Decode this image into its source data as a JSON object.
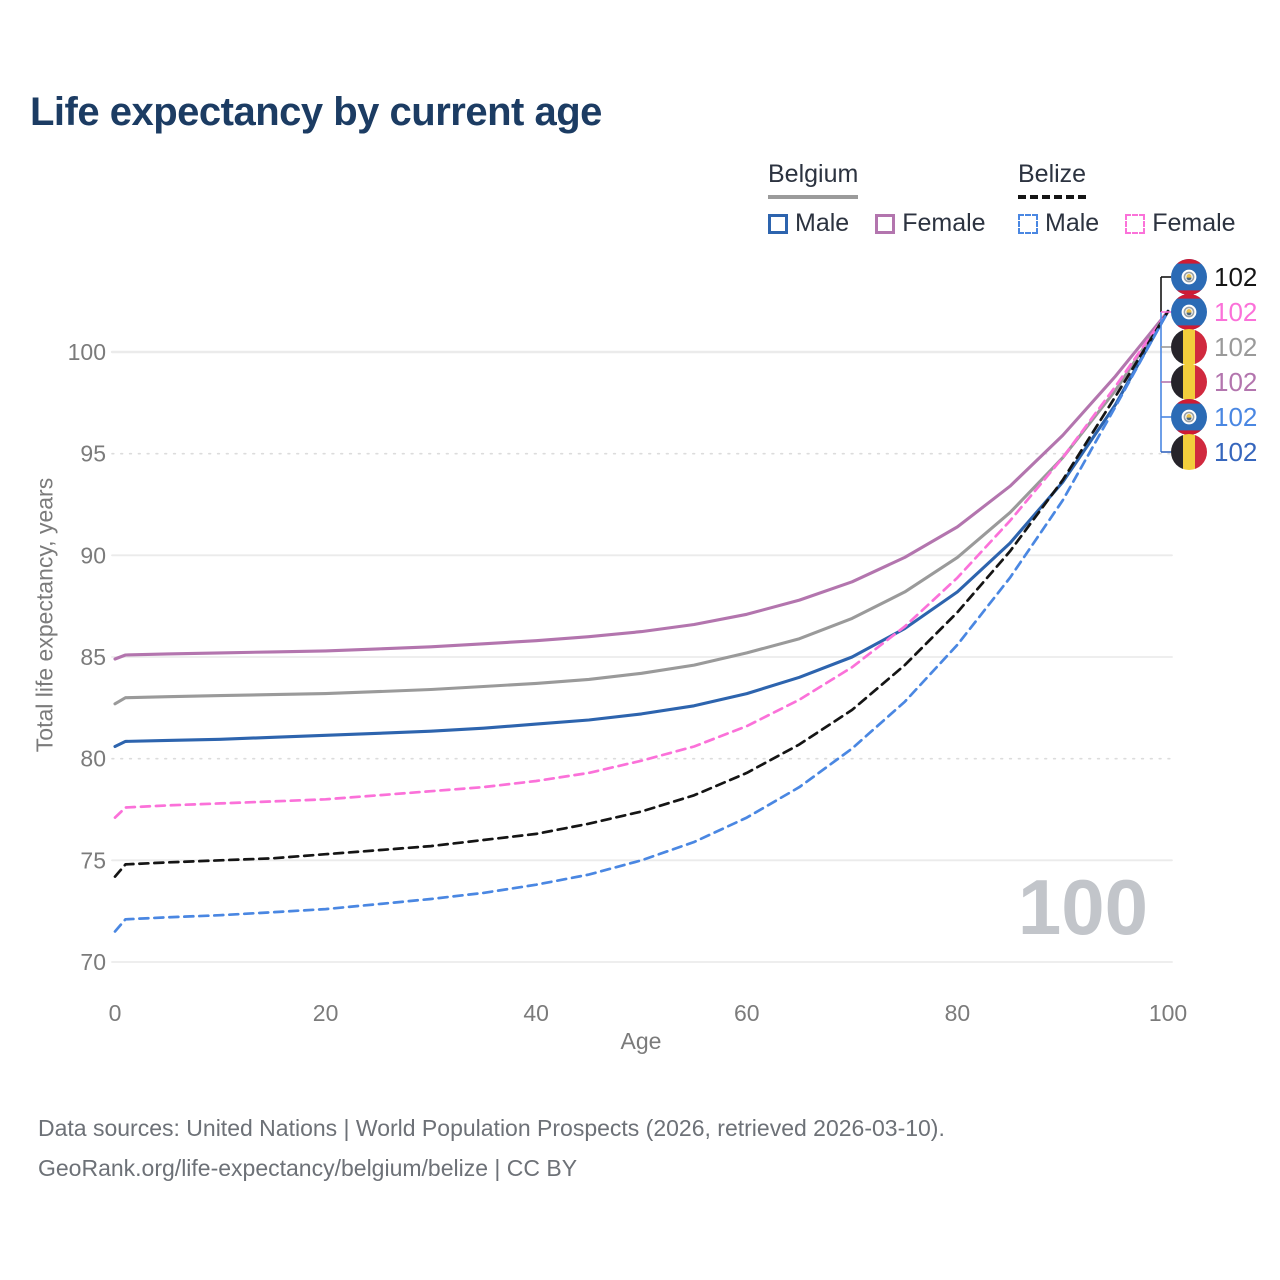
{
  "title": "Life expectancy by current age",
  "legend": {
    "groups": [
      {
        "label": "Belgium",
        "line_style": "solid",
        "underline_color": "#9b9b9b",
        "items": [
          {
            "label": "Male",
            "color": "#2d64ae"
          },
          {
            "label": "Female",
            "color": "#b375ae"
          }
        ]
      },
      {
        "label": "Belize",
        "line_style": "dashed",
        "underline_color": "#151515",
        "items": [
          {
            "label": "Male",
            "color": "#4a87e2"
          },
          {
            "label": "Female",
            "color": "#fb71d9"
          }
        ]
      }
    ]
  },
  "chart_data": {
    "type": "line",
    "title": "Life expectancy by current age",
    "xlabel": "Age",
    "ylabel": "Total life expectancy, years",
    "xlim": [
      0,
      100
    ],
    "ylim": [
      70,
      103
    ],
    "xticks": [
      0,
      20,
      40,
      60,
      80,
      100
    ],
    "yticks": [
      70,
      75,
      80,
      85,
      90,
      95,
      100
    ],
    "grid": "horizontal",
    "legend_position": "top-right",
    "x_ages": [
      0,
      1,
      5,
      10,
      15,
      20,
      25,
      30,
      35,
      40,
      45,
      50,
      55,
      60,
      65,
      70,
      75,
      80,
      85,
      90,
      95,
      100
    ],
    "series": [
      {
        "name": "Belgium Female",
        "country": "Belgium",
        "sex": "Female",
        "color": "#b375ae",
        "dashed": false,
        "values": [
          84.9,
          85.1,
          85.15,
          85.2,
          85.25,
          85.3,
          85.4,
          85.5,
          85.65,
          85.8,
          86.0,
          86.25,
          86.6,
          87.1,
          87.8,
          88.7,
          89.9,
          91.4,
          93.4,
          95.9,
          98.8,
          102
        ]
      },
      {
        "name": "Belgium Total",
        "country": "Belgium",
        "sex": "Total",
        "color": "#9a9a9a",
        "dashed": false,
        "values": [
          82.7,
          83.0,
          83.05,
          83.1,
          83.15,
          83.2,
          83.3,
          83.4,
          83.55,
          83.7,
          83.9,
          84.2,
          84.6,
          85.2,
          85.9,
          86.9,
          88.2,
          89.9,
          92.1,
          94.8,
          98.1,
          102
        ]
      },
      {
        "name": "Belgium Male",
        "country": "Belgium",
        "sex": "Male",
        "color": "#2d64ae",
        "dashed": false,
        "values": [
          80.6,
          80.85,
          80.9,
          80.95,
          81.05,
          81.15,
          81.25,
          81.35,
          81.5,
          81.7,
          81.9,
          82.2,
          82.6,
          83.2,
          84.0,
          85.0,
          86.4,
          88.2,
          90.6,
          93.6,
          97.4,
          102
        ]
      },
      {
        "name": "Belize Female",
        "country": "Belize",
        "sex": "Female",
        "color": "#fb71d9",
        "dashed": true,
        "values": [
          77.1,
          77.6,
          77.7,
          77.8,
          77.9,
          78.0,
          78.2,
          78.4,
          78.6,
          78.9,
          79.3,
          79.9,
          80.6,
          81.6,
          82.9,
          84.5,
          86.5,
          88.9,
          91.7,
          94.8,
          98.3,
          102
        ]
      },
      {
        "name": "Belize Total",
        "country": "Belize",
        "sex": "Total",
        "color": "#151515",
        "dashed": true,
        "values": [
          74.2,
          74.8,
          74.9,
          75.0,
          75.1,
          75.3,
          75.5,
          75.7,
          76.0,
          76.3,
          76.8,
          77.4,
          78.2,
          79.3,
          80.7,
          82.4,
          84.6,
          87.2,
          90.2,
          93.7,
          97.8,
          102
        ]
      },
      {
        "name": "Belize Male",
        "country": "Belize",
        "sex": "Male",
        "color": "#4a87e2",
        "dashed": true,
        "values": [
          71.5,
          72.1,
          72.2,
          72.3,
          72.45,
          72.6,
          72.85,
          73.1,
          73.4,
          73.8,
          74.3,
          75.0,
          75.9,
          77.1,
          78.6,
          80.5,
          82.8,
          85.6,
          88.9,
          92.7,
          97.3,
          102
        ]
      }
    ],
    "end_labels": [
      {
        "country": "Belize",
        "sex": "Total",
        "flag": "belize",
        "value": "102",
        "color": "#151515"
      },
      {
        "country": "Belize",
        "sex": "Female",
        "flag": "belize",
        "value": "102",
        "color": "#fb71d9"
      },
      {
        "country": "Belgium",
        "sex": "Total",
        "flag": "belgium",
        "value": "102",
        "color": "#9a9a9a"
      },
      {
        "country": "Belgium",
        "sex": "Female",
        "flag": "belgium",
        "value": "102",
        "color": "#b375ae"
      },
      {
        "country": "Belize",
        "sex": "Male",
        "flag": "belize",
        "value": "102",
        "color": "#4a87e2"
      },
      {
        "country": "Belgium",
        "sex": "Male",
        "flag": "belgium",
        "value": "102",
        "color": "#3666bd"
      }
    ],
    "age_indicator": "100"
  },
  "footer": {
    "line1": "Data sources: United Nations | World Population Prospects (2026, retrieved 2026-03-10).",
    "line2": "GeoRank.org/life-expectancy/belgium/belize | CC BY"
  }
}
